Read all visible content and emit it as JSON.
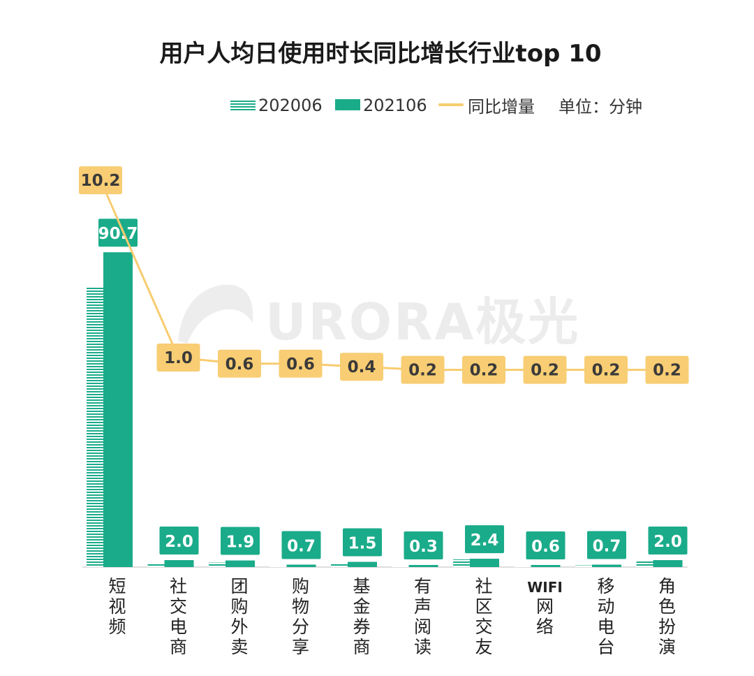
{
  "chart_data": {
    "type": "bar",
    "title": "用户人均日使用时长同比增长行业top 10",
    "unit_label": "单位：分钟",
    "categories": [
      "短视频",
      "社交电商",
      "团购外卖",
      "购物分享",
      "基金券商",
      "有声阅读",
      "社区交友",
      "WIFI网络",
      "移动电台",
      "角色扮演"
    ],
    "series": [
      {
        "name": "202006",
        "kind": "bar",
        "pattern": "striped",
        "color": "#1aab8a",
        "values": [
          80.5,
          1.0,
          1.3,
          0.1,
          1.1,
          0.1,
          2.2,
          0.4,
          0.5,
          1.8
        ]
      },
      {
        "name": "202106",
        "kind": "bar",
        "color": "#1aab8a",
        "values": [
          90.7,
          2.0,
          1.9,
          0.7,
          1.5,
          0.3,
          2.4,
          0.6,
          0.7,
          2.0
        ]
      },
      {
        "name": "同比增量",
        "kind": "line",
        "color": "#f7cc6f",
        "values": [
          10.2,
          1.0,
          0.6,
          0.6,
          0.4,
          0.2,
          0.2,
          0.2,
          0.2,
          0.2
        ]
      }
    ],
    "bar_labels": [
      "90.7",
      "2.0",
      "1.9",
      "0.7",
      "1.5",
      "0.3",
      "2.4",
      "0.6",
      "0.7",
      "2.0"
    ],
    "line_labels": [
      "10.2",
      "1.0",
      "0.6",
      "0.6",
      "0.4",
      "0.2",
      "0.2",
      "0.2",
      "0.2",
      "0.2"
    ],
    "ylim_bars": [
      0,
      100
    ],
    "grid": false,
    "legend_position": "top-right"
  },
  "watermark": "URORA极光",
  "colors": {
    "bar": "#1aab8a",
    "line": "#f7cc6f",
    "line_label_bg": "#f8cd73",
    "bar_label_bg": "#1aab8a"
  }
}
